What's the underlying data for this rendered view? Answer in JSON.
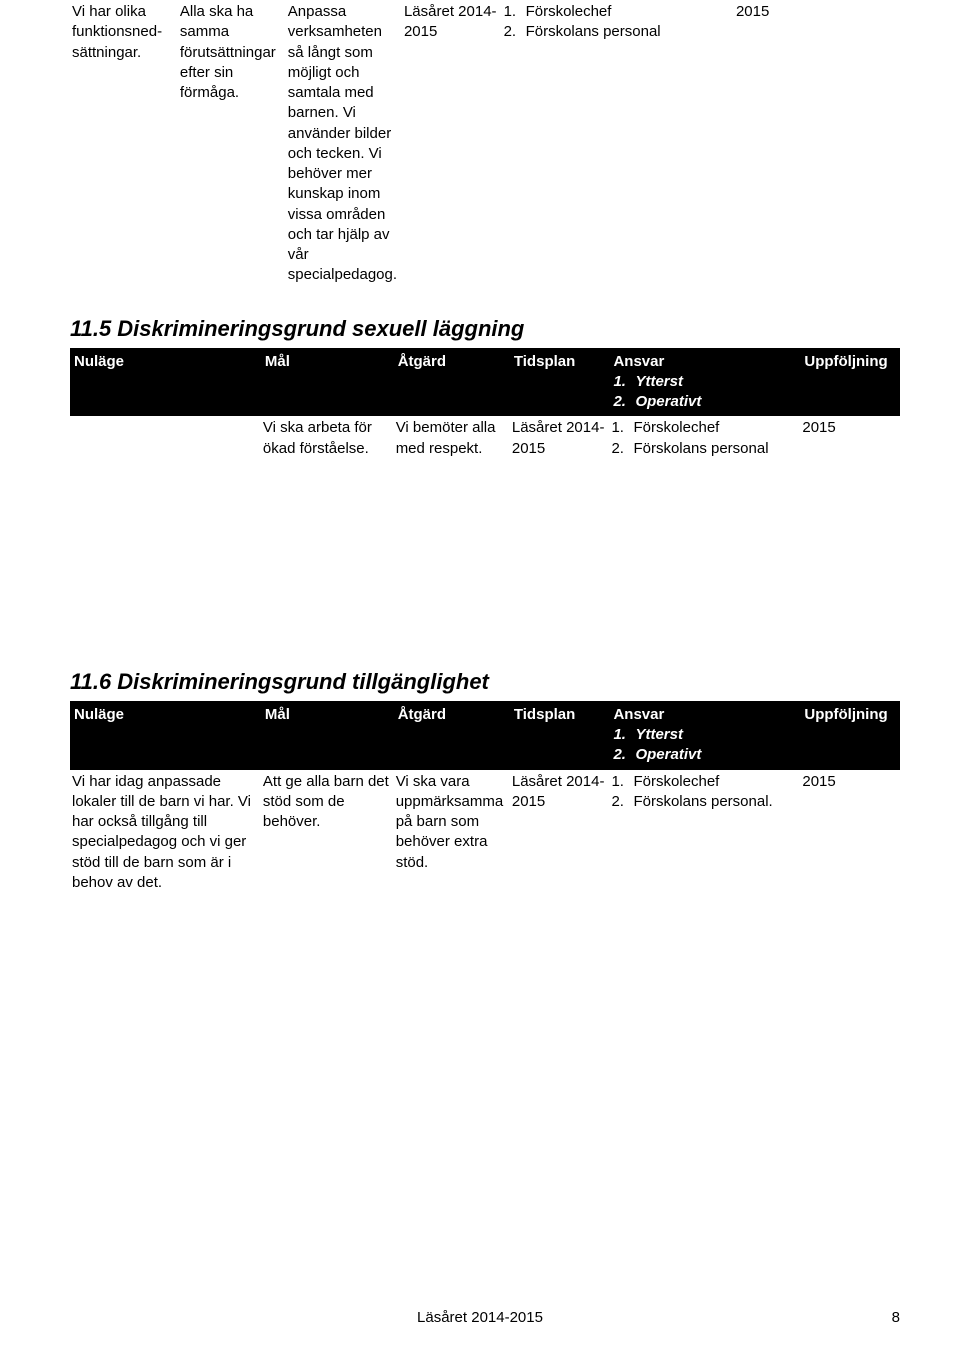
{
  "topRow": {
    "col1": "Vi har olika funktionsned-sättningar.",
    "col2": "Alla ska ha samma förutsättningar efter sin förmåga.",
    "col3": "Anpassa verksamheten så långt som möjligt och samtala med barnen. Vi använder bilder och tecken. Vi behöver mer kunskap inom vissa områden och tar hjälp av vår specialpedagog.",
    "col4": "Läsåret 2014-2015",
    "col5a_num": "1.",
    "col5a_txt": "Förskolechef",
    "col5b_num": "2.",
    "col5b_txt": "Förskolans personal",
    "col6": "2015"
  },
  "section5": {
    "title": "11.5 Diskrimineringsgrund sexuell läggning",
    "headers": {
      "nulage": "Nuläge",
      "mal": "Mål",
      "atgard": "Åtgärd",
      "tidsplan": "Tidsplan",
      "ansvar": "Ansvar",
      "ansvar_sub1_num": "1.",
      "ansvar_sub1_txt": "Ytterst",
      "ansvar_sub2_num": "2.",
      "ansvar_sub2_txt": "Operativt",
      "uppfoljning": "Uppföljning"
    },
    "row": {
      "nulage": "",
      "mal": "Vi ska arbeta för ökad förståelse.",
      "atgard": "Vi bemöter alla med respekt.",
      "tidsplan": "Läsåret 2014-2015",
      "ansvar1_num": "1.",
      "ansvar1_txt": "Förskolechef",
      "ansvar2_num": "2.",
      "ansvar2_txt": "Förskolans personal",
      "uppfoljning": "2015"
    }
  },
  "section6": {
    "title": "11.6 Diskrimineringsgrund tillgänglighet",
    "headers": {
      "nulage": "Nuläge",
      "mal": "Mål",
      "atgard": "Åtgärd",
      "tidsplan": "Tidsplan",
      "ansvar": "Ansvar",
      "ansvar_sub1_num": "1.",
      "ansvar_sub1_txt": "Ytterst",
      "ansvar_sub2_num": "2.",
      "ansvar_sub2_txt": "Operativt",
      "uppfoljning": "Uppföljning"
    },
    "row": {
      "nulage": "Vi har idag anpassade lokaler till de barn vi har. Vi har också tillgång till specialpedagog och vi ger stöd till de barn som är i behov av det.",
      "mal": "Att ge alla barn det stöd som de behöver.",
      "atgard": "Vi ska vara uppmärksamma på barn som behöver extra stöd.",
      "tidsplan": "Läsåret 2014-2015",
      "ansvar1_num": "1.",
      "ansvar1_txt": "Förskolechef",
      "ansvar2_num": "2.",
      "ansvar2_txt": "Förskolans personal.",
      "uppfoljning": "2015"
    }
  },
  "footer": "Läsåret 2014-2015",
  "pageNumber": "8"
}
